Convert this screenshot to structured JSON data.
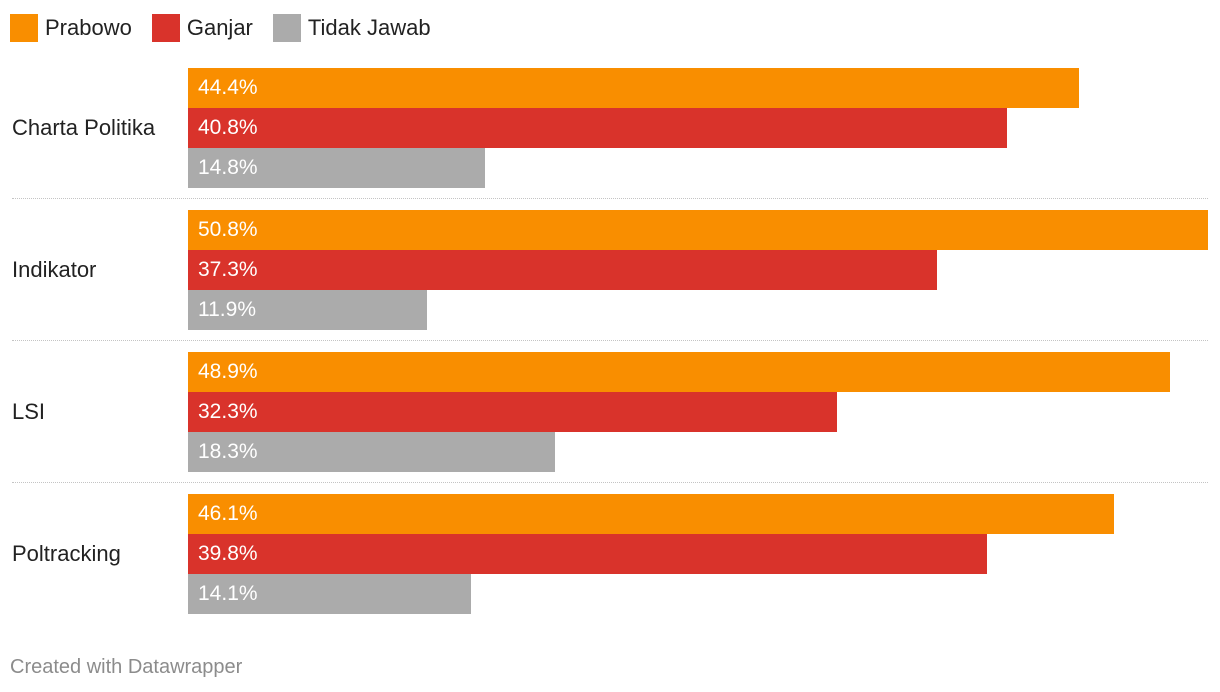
{
  "chart_data": {
    "type": "bar",
    "orientation": "horizontal",
    "grouped": true,
    "categories": [
      "Charta Politika",
      "Indikator",
      "LSI",
      "Poltracking"
    ],
    "series": [
      {
        "name": "Prabowo",
        "color": "#f98e00",
        "values": [
          44.4,
          50.8,
          48.9,
          46.1
        ]
      },
      {
        "name": "Ganjar",
        "color": "#d9332b",
        "values": [
          40.8,
          37.3,
          32.3,
          39.8
        ]
      },
      {
        "name": "Tidak Jawab",
        "color": "#ababab",
        "values": [
          14.8,
          11.9,
          18.3,
          14.1
        ]
      }
    ],
    "value_suffix": "%",
    "xlim": [
      0,
      50.8
    ],
    "legend_position": "top-left",
    "grid": false
  },
  "footer": "Created with Datawrapper"
}
